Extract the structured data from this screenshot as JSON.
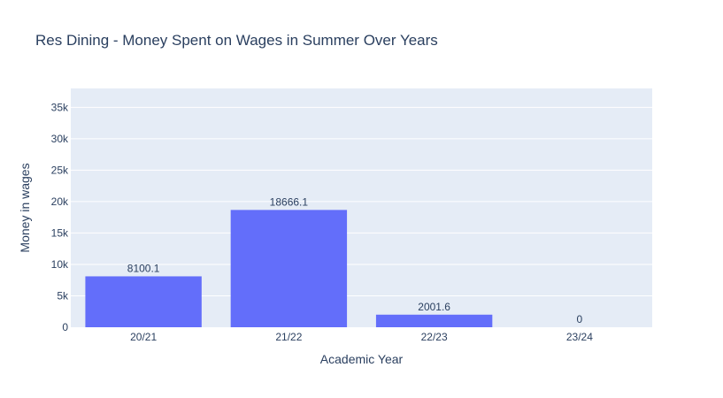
{
  "chart_data": {
    "type": "bar",
    "title": "Res Dining - Money Spent on Wages in Summer Over Years",
    "xlabel": "Academic Year",
    "ylabel": "Money in wages",
    "categories": [
      "20/21",
      "21/22",
      "22/23",
      "23/24"
    ],
    "values": [
      8100.1,
      18666.1,
      2001.6,
      0
    ],
    "data_labels": [
      "8100.1",
      "18666.1",
      "2001.6",
      "0"
    ],
    "ylim": [
      0,
      38000
    ],
    "yticks": [
      0,
      5000,
      10000,
      15000,
      20000,
      25000,
      30000,
      35000
    ],
    "ytick_labels": [
      "0",
      "5k",
      "10k",
      "15k",
      "20k",
      "25k",
      "30k",
      "35k"
    ],
    "grid": true,
    "colors": {
      "bar": "#636efa",
      "plot_bg": "#e5ecf6",
      "grid": "#ffffff",
      "text": "#2a3f5f"
    }
  }
}
